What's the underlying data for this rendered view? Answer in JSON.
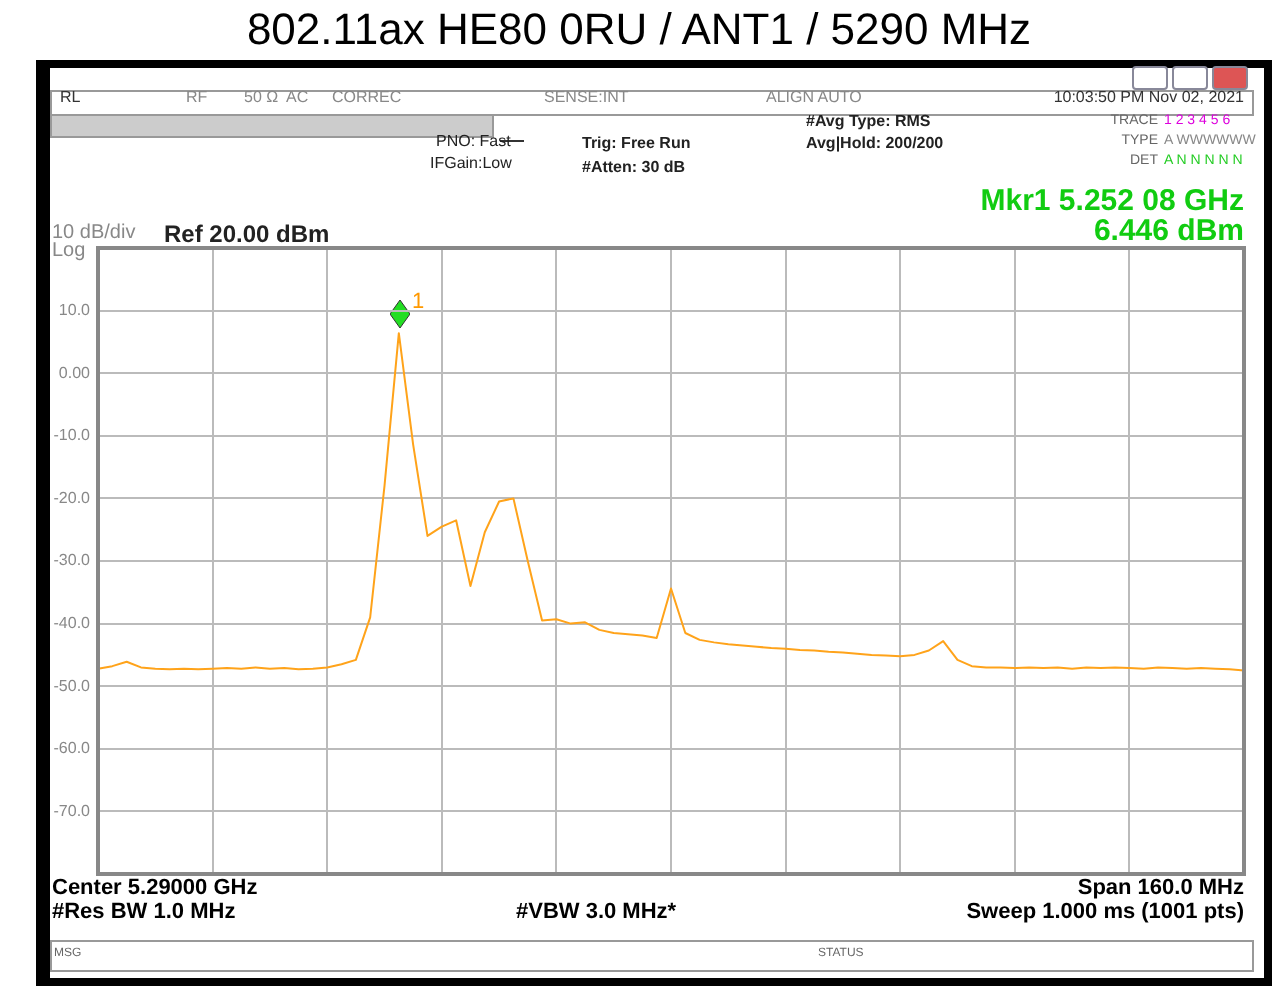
{
  "chart_data": {
    "type": "line",
    "title": "802.11ax HE80 0RU / ANT1 / 5290 MHz",
    "categories": [
      null,
      null,
      null,
      null,
      null,
      null,
      null,
      null,
      null,
      null,
      null,
      null,
      null,
      null,
      null,
      null,
      null,
      null,
      null,
      null,
      null,
      null,
      null,
      null,
      null,
      null,
      null,
      null,
      null,
      null,
      null,
      null,
      null,
      null,
      null,
      null,
      null,
      null,
      null,
      null,
      null,
      null,
      null,
      null,
      null,
      null,
      null,
      null,
      null,
      null,
      null,
      null,
      null,
      null,
      null,
      null,
      null,
      null,
      null,
      null,
      null,
      null,
      null,
      null,
      null,
      null,
      null,
      null,
      null,
      null,
      null,
      null,
      null,
      null,
      null,
      null,
      null,
      null,
      null,
      null,
      null
    ],
    "ylim": [
      -80,
      20
    ],
    "yticks": [
      {
        "value": 20,
        "label": null
      },
      {
        "value": 10,
        "label": "10.0"
      },
      {
        "value": 0,
        "label": "0.00"
      },
      {
        "value": -10,
        "label": "-10.0"
      },
      {
        "value": -20,
        "label": "-20.0"
      },
      {
        "value": -30,
        "label": "-30.0"
      },
      {
        "value": -40,
        "label": "-40.0"
      },
      {
        "value": -50,
        "label": "-50.0"
      },
      {
        "value": -60,
        "label": "-60.0"
      },
      {
        "value": -70,
        "label": "-70.0"
      },
      {
        "value": -80,
        "label": null
      }
    ],
    "tick_labels": "y",
    "grid": true,
    "legend": false,
    "marker": "none",
    "line_style": "solid",
    "series": [
      {
        "color": "#ffa31a",
        "values": [
          -47.2,
          -46.8,
          -46.1,
          -47.0,
          -47.2,
          -47.3,
          -47.2,
          -47.3,
          -47.2,
          -47.1,
          -47.2,
          -47.0,
          -47.2,
          -47.1,
          -47.3,
          -47.2,
          -47.0,
          -46.5,
          -45.8,
          -39,
          -18,
          6.4,
          -11.4,
          -26,
          -24.5,
          -23.5,
          -34,
          -25.4,
          -20.5,
          -20.0,
          -30,
          -39.5,
          -39.3,
          -40,
          -39.8,
          -41,
          -41.5,
          -41.7,
          -41.9,
          -42.3,
          -34.4,
          -41.5,
          -42.6,
          -43.0,
          -43.3,
          -43.5,
          -43.7,
          -43.9,
          -44.0,
          -44.2,
          -44.3,
          -44.5,
          -44.6,
          -44.8,
          -45.0,
          -45.1,
          -45.2,
          -45.0,
          -44.3,
          -42.8,
          -45.8,
          -46.8,
          -47.0,
          -47.0,
          -47.1,
          -47.0,
          -47.1,
          -47.0,
          -47.2,
          -47.0,
          -47.1,
          -47.0,
          -47.1,
          -47.2,
          -47.0,
          -47.1,
          -47.2,
          -47.1,
          -47.2,
          -47.3,
          -47.5
        ]
      }
    ],
    "annotations": [
      "1",
      "RL",
      "RF",
      "50 Ω",
      "AC",
      "CORREC",
      "SENSE:INT",
      "ALIGN AUTO",
      "10:03:50 PM Nov 02, 2021",
      "PNO: Fast",
      "IFGain:Low",
      "Trig: Free Run",
      "#Atten: 30 dB",
      "#Avg Type: RMS",
      "Avg|Hold: 200/200",
      "TRACE",
      "1 2 3 4 5 6",
      "TYPE",
      "A WWWWWW",
      "DET",
      "A N N N N N",
      "10 dB/div",
      "Log",
      "Ref 20.00 dBm",
      "Mkr1 5.252 08 GHz",
      "6.446 dBm",
      "Center 5.29000 GHz",
      "#Res BW 1.0 MHz",
      "#VBW 3.0 MHz*",
      "Span 160.0 MHz",
      "Sweep  1.000 ms (1001 pts)",
      "MSG",
      "STATUS"
    ]
  }
}
